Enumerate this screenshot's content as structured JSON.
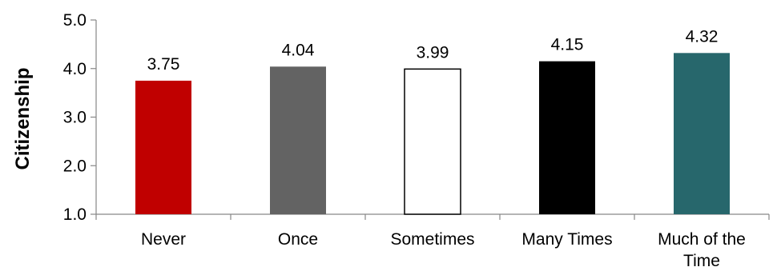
{
  "chart_data": {
    "type": "bar",
    "title": "",
    "xlabel": "",
    "ylabel": "Citizenship",
    "ylim": [
      1.0,
      5.0
    ],
    "yticks": [
      "1.0",
      "2.0",
      "3.0",
      "4.0",
      "5.0"
    ],
    "grid": false,
    "legend": "none",
    "categories": [
      [
        "Never"
      ],
      [
        "Once"
      ],
      [
        "Sometimes"
      ],
      [
        "Many Times"
      ],
      [
        "Much of the",
        "Time"
      ]
    ],
    "values": [
      3.75,
      4.04,
      3.99,
      4.15,
      4.32
    ],
    "data_labels": [
      "3.75",
      "4.04",
      "3.99",
      "4.15",
      "4.32"
    ],
    "bar_colors": [
      "#c00000",
      "#636363",
      "#ffffff",
      "#000000",
      "#27676c"
    ],
    "bar_outline": "#000000",
    "axis_color": "#878787"
  }
}
